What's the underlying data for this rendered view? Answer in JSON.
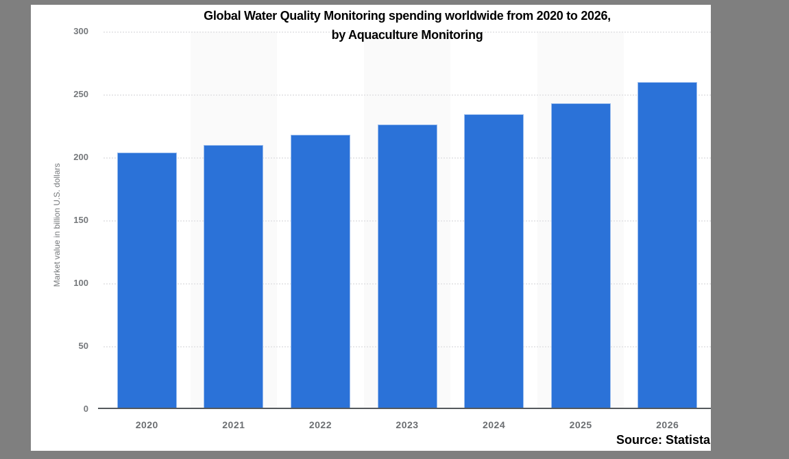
{
  "frame": {
    "border_color": "#7f7f7f",
    "background": "#ffffff"
  },
  "chart_data": {
    "type": "bar",
    "title_line1": "Global Water Quality Monitoring spending worldwide from 2020 to 2026,",
    "title_line2": "by Aquaculture Monitoring",
    "categories": [
      "2020",
      "2021",
      "2022",
      "2023",
      "2024",
      "2025",
      "2026"
    ],
    "values": [
      204,
      210,
      218,
      226,
      234,
      243,
      260
    ],
    "xlabel": "",
    "ylabel": "Market value in billion U.S. dollars",
    "ylim": [
      0,
      300
    ],
    "ytick_step": 50,
    "ytick_labels": [
      "0",
      "50",
      "100",
      "150",
      "200",
      "250",
      "300"
    ],
    "grid": "horizontal-dotted",
    "legend": "none",
    "bar_color": "#2b72d8",
    "bar_border_color": "#9cbeee",
    "stripe_color": "#fafafa",
    "source": "Source: Statista"
  }
}
